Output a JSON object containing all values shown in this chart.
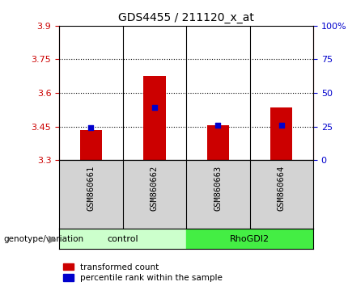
{
  "title": "GDS4455 / 211120_x_at",
  "samples": [
    "GSM860661",
    "GSM860662",
    "GSM860663",
    "GSM860664"
  ],
  "red_values": [
    3.435,
    3.675,
    3.455,
    3.535
  ],
  "blue_values": [
    3.445,
    3.535,
    3.455,
    3.455
  ],
  "ylim_left": [
    3.3,
    3.9
  ],
  "ylim_right": [
    0,
    100
  ],
  "yticks_left": [
    3.3,
    3.45,
    3.6,
    3.75,
    3.9
  ],
  "yticks_right": [
    0,
    25,
    50,
    75,
    100
  ],
  "ytick_labels_left": [
    "3.3",
    "3.45",
    "3.6",
    "3.75",
    "3.9"
  ],
  "ytick_labels_right": [
    "0",
    "25",
    "50",
    "75",
    "100%"
  ],
  "bar_color": "#cc0000",
  "dot_color": "#0000cc",
  "group_spans": [
    {
      "label": "control",
      "xmin": -0.5,
      "xmax": 1.5,
      "color": "#ccffcc"
    },
    {
      "label": "RhoGDI2",
      "xmin": 1.5,
      "xmax": 3.5,
      "color": "#44ee44"
    }
  ],
  "group_label": "genotype/variation",
  "legend_items": [
    "transformed count",
    "percentile rank within the sample"
  ],
  "legend_colors": [
    "#cc0000",
    "#0000cc"
  ],
  "bar_width": 0.35,
  "sample_area_color": "#d3d3d3",
  "title_fontsize": 10
}
